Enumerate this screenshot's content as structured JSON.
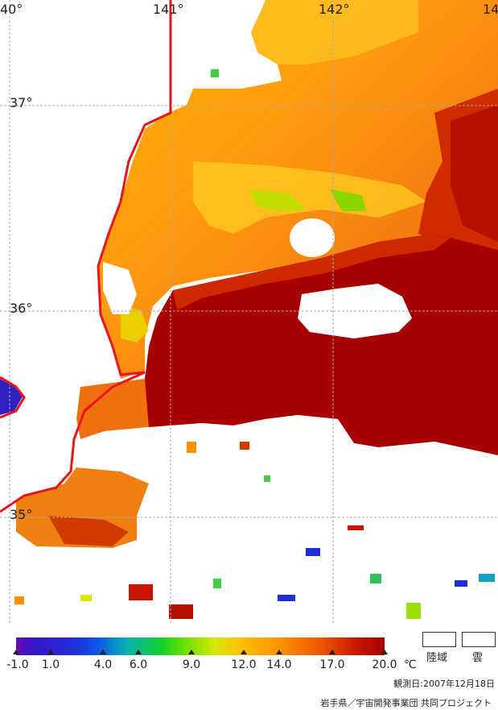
{
  "map": {
    "lon_labels": [
      "40°",
      "141°",
      "142°",
      "14"
    ],
    "lat_labels": [
      "37°",
      "36°",
      "35°"
    ],
    "colors": {
      "land": "#ffffff",
      "coast": "#e8141e",
      "grid": "#aaaaaa"
    }
  },
  "legend": {
    "ticks": [
      "-1.0",
      "1.0",
      "4.0",
      "6.0",
      "9.0",
      "12.0",
      "14.0",
      "17.0",
      "20.0"
    ],
    "unit": "℃",
    "land_label": "陸域",
    "cloud_label": "雲"
  },
  "footer": {
    "observation_date": "観測日:2007年12月18日",
    "credit": "岩手県／宇宙開発事業団 共同プロジェクト"
  }
}
